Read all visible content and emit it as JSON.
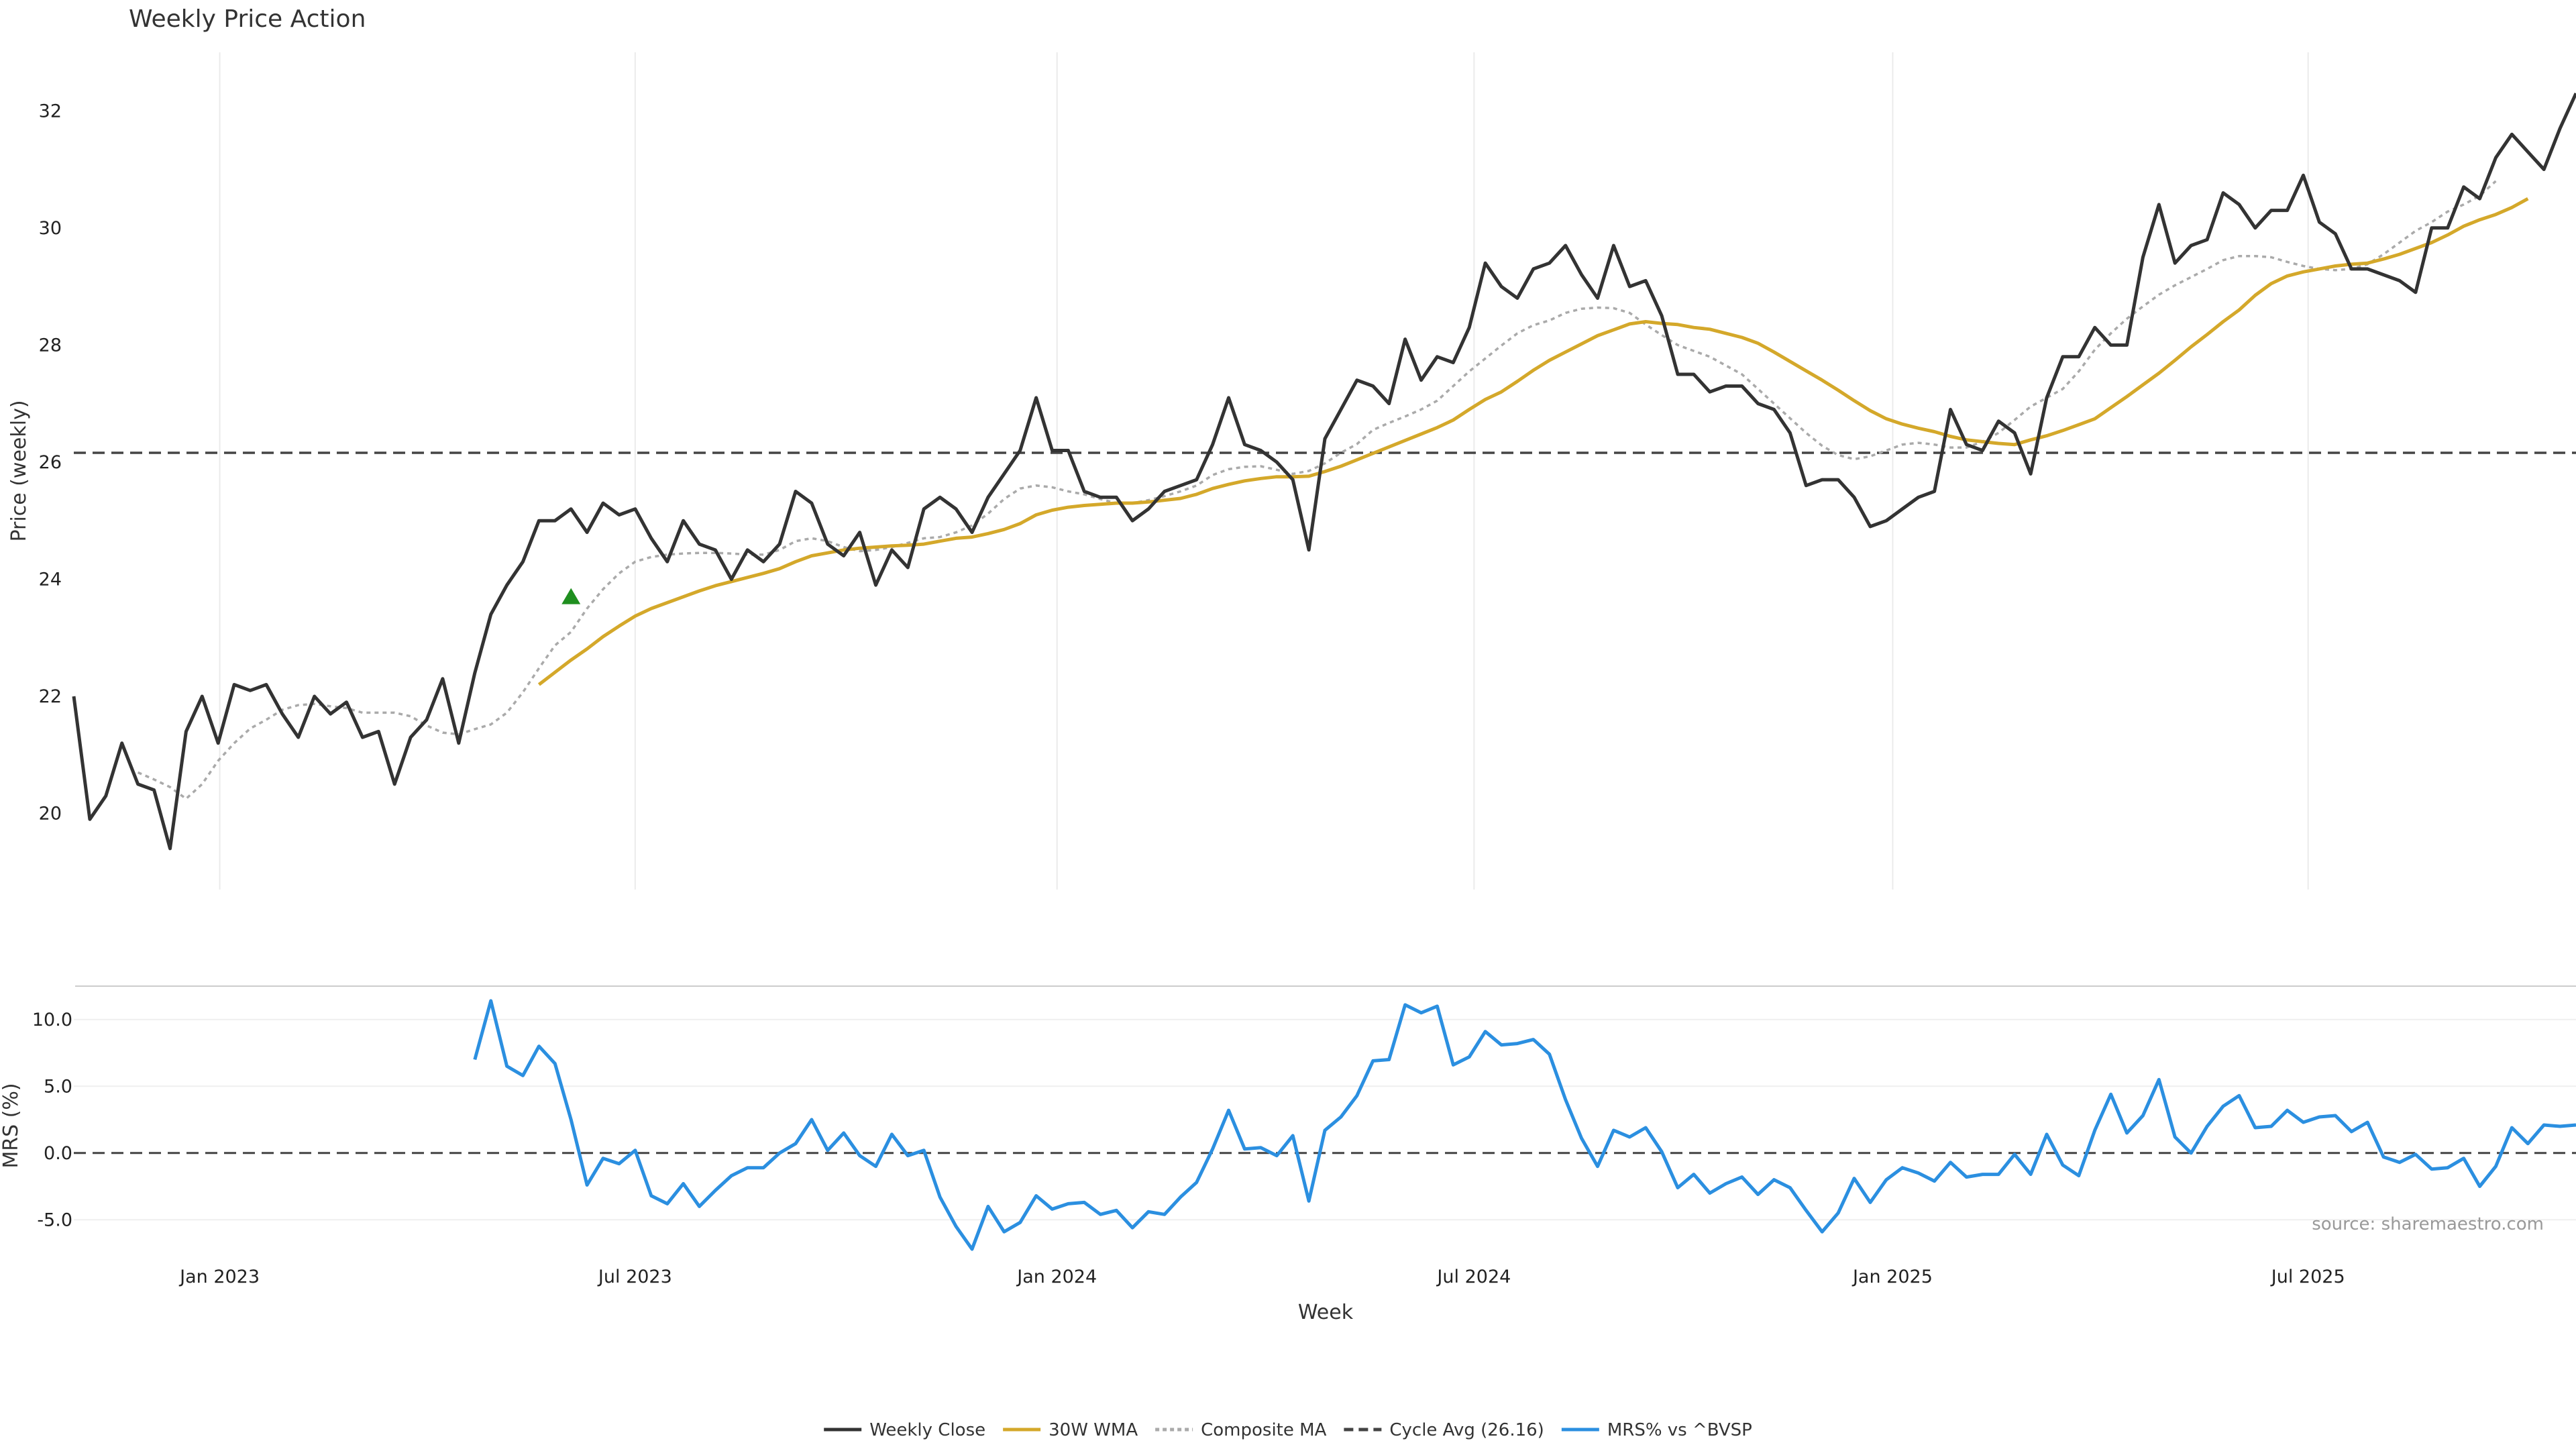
{
  "chart_data": [
    {
      "type": "line",
      "title": "Weekly Price Action",
      "ylabel": "Price (weekly)",
      "ylim": [
        18.7,
        33.0
      ],
      "yticks": [
        20,
        22,
        24,
        26,
        28,
        30,
        32
      ],
      "grid": "vertical",
      "x_start": "2022-11-07",
      "x_step_weeks": 1,
      "series": [
        {
          "name": "Weekly Close",
          "color": "#333333",
          "style": "solid",
          "values": [
            22.0,
            19.9,
            20.3,
            21.2,
            20.5,
            20.4,
            19.4,
            21.4,
            22.0,
            21.2,
            22.2,
            22.1,
            22.2,
            21.7,
            21.3,
            22.0,
            21.7,
            21.9,
            21.3,
            21.4,
            20.5,
            21.3,
            21.6,
            22.3,
            21.2,
            22.4,
            23.4,
            23.9,
            24.3,
            25.0,
            25.0,
            25.2,
            24.8,
            25.3,
            25.1,
            25.2,
            24.7,
            24.3,
            25.0,
            24.6,
            24.5,
            24.0,
            24.5,
            24.3,
            24.6,
            25.5,
            25.3,
            24.6,
            24.4,
            24.8,
            23.9,
            24.5,
            24.2,
            25.2,
            25.4,
            25.2,
            24.8,
            25.4,
            25.8,
            26.2,
            27.1,
            26.2,
            26.2,
            25.5,
            25.4,
            25.4,
            25.0,
            25.2,
            25.5,
            25.6,
            25.7,
            26.3,
            27.1,
            26.3,
            26.2,
            26.0,
            25.7,
            24.5,
            26.4,
            26.9,
            27.4,
            27.3,
            27.0,
            28.1,
            27.4,
            27.8,
            27.7,
            28.3,
            29.4,
            29.0,
            28.8,
            29.3,
            29.4,
            29.7,
            29.2,
            28.8,
            29.7,
            29.0,
            29.1,
            28.5,
            27.5,
            27.5,
            27.2,
            27.3,
            27.3,
            27.0,
            26.9,
            26.5,
            25.6,
            25.7,
            25.7,
            25.4,
            24.9,
            25.0,
            25.2,
            25.4,
            25.5,
            26.9,
            26.3,
            26.2,
            26.7,
            26.5,
            25.8,
            27.1,
            27.8,
            27.8,
            28.3,
            28.0,
            28.0,
            29.5,
            30.4,
            29.4,
            29.7,
            29.8,
            30.6,
            30.4,
            30.0,
            30.3,
            30.3,
            30.9,
            30.1,
            29.9,
            29.3,
            29.3,
            29.2,
            29.1,
            28.9,
            30.0,
            30.0,
            30.7,
            30.5,
            31.2,
            31.6,
            31.3,
            31.0,
            31.7,
            32.3
          ]
        },
        {
          "name": "30W WMA",
          "color": "#d4a82a",
          "style": "solid",
          "start_week": 29,
          "values": [
            22.2,
            22.41,
            22.62,
            22.81,
            23.02,
            23.2,
            23.37,
            23.5,
            23.6,
            23.7,
            23.8,
            23.89,
            23.96,
            24.03,
            24.1,
            24.18,
            24.3,
            24.4,
            24.45,
            24.5,
            24.53,
            24.55,
            24.57,
            24.58,
            24.6,
            24.65,
            24.7,
            24.72,
            24.78,
            24.85,
            24.95,
            25.1,
            25.18,
            25.23,
            25.26,
            25.28,
            25.3,
            25.3,
            25.32,
            25.35,
            25.38,
            25.45,
            25.55,
            25.62,
            25.68,
            25.72,
            25.75,
            25.75,
            25.76,
            25.84,
            25.93,
            26.04,
            26.15,
            26.26,
            26.37,
            26.48,
            26.59,
            26.72,
            26.9,
            27.07,
            27.2,
            27.38,
            27.57,
            27.74,
            27.88,
            28.02,
            28.16,
            28.26,
            28.36,
            28.4,
            28.37,
            28.35,
            28.3,
            28.27,
            28.2,
            28.13,
            28.03,
            27.88,
            27.72,
            27.56,
            27.4,
            27.23,
            27.05,
            26.88,
            26.74,
            26.65,
            26.58,
            26.52,
            26.44,
            26.38,
            26.35,
            26.32,
            26.3,
            26.38,
            26.45,
            26.54,
            26.64,
            26.74,
            26.93,
            27.12,
            27.32,
            27.52,
            27.74,
            27.97,
            28.18,
            28.4,
            28.6,
            28.85,
            29.05,
            29.18,
            29.25,
            29.3,
            29.35,
            29.38,
            29.4,
            29.47,
            29.55,
            29.65,
            29.75,
            29.88,
            30.03,
            30.14,
            30.23,
            30.35,
            30.5
          ]
        },
        {
          "name": "Composite MA",
          "color": "#aaaaaa",
          "style": "dotted",
          "start_week": 4,
          "values": [
            20.7,
            20.58,
            20.45,
            20.25,
            20.5,
            20.9,
            21.2,
            21.45,
            21.6,
            21.77,
            21.85,
            21.87,
            21.83,
            21.8,
            21.72,
            21.72,
            21.72,
            21.66,
            21.5,
            21.38,
            21.35,
            21.44,
            21.52,
            21.72,
            22.07,
            22.48,
            22.87,
            23.1,
            23.5,
            23.83,
            24.1,
            24.3,
            24.38,
            24.42,
            24.44,
            24.45,
            24.45,
            24.44,
            24.42,
            24.42,
            24.5,
            24.65,
            24.7,
            24.65,
            24.55,
            24.48,
            24.5,
            24.55,
            24.62,
            24.7,
            24.72,
            24.8,
            24.92,
            25.12,
            25.37,
            25.55,
            25.6,
            25.57,
            25.5,
            25.45,
            25.37,
            25.3,
            25.3,
            25.35,
            25.42,
            25.5,
            25.6,
            25.78,
            25.88,
            25.92,
            25.93,
            25.87,
            25.8,
            25.85,
            25.98,
            26.16,
            26.31,
            26.55,
            26.67,
            26.78,
            26.9,
            27.05,
            27.3,
            27.55,
            27.77,
            27.99,
            28.2,
            28.34,
            28.42,
            28.55,
            28.62,
            28.64,
            28.63,
            28.55,
            28.35,
            28.17,
            28.0,
            27.9,
            27.8,
            27.65,
            27.5,
            27.25,
            27.0,
            26.75,
            26.5,
            26.28,
            26.12,
            26.05,
            26.1,
            26.2,
            26.3,
            26.33,
            26.3,
            26.25,
            26.25,
            26.35,
            26.5,
            26.72,
            26.95,
            27.1,
            27.25,
            27.55,
            27.92,
            28.2,
            28.45,
            28.66,
            28.86,
            29.02,
            29.16,
            29.3,
            29.45,
            29.52,
            29.52,
            29.5,
            29.42,
            29.35,
            29.3,
            29.28,
            29.3,
            29.38,
            29.55,
            29.75,
            29.95,
            30.1,
            30.28,
            30.4,
            30.55,
            30.8
          ]
        }
      ],
      "reference_lines": [
        {
          "name": "Cycle Avg (26.16)",
          "y": 26.16,
          "color": "#444444",
          "style": "dashed"
        }
      ],
      "markers": [
        {
          "shape": "triangle-up",
          "x_week": 31,
          "y": 23.7,
          "color": "#1f8f1f"
        }
      ]
    },
    {
      "type": "line",
      "xlabel": "Week",
      "ylabel": "MRS (%)",
      "ylim": [
        -7.8,
        12.5
      ],
      "yticks": [
        10.0,
        5.0,
        0.0,
        -5.0
      ],
      "ytick_labels": [
        "10.0",
        "5.0",
        "0.0",
        "-5.0"
      ],
      "xticks": [
        {
          "label": "Jan 2023",
          "week": 9.1
        },
        {
          "label": "Jul 2023",
          "week": 35
        },
        {
          "label": "Jan 2024",
          "week": 61.3
        },
        {
          "label": "Jul 2024",
          "week": 87.3
        },
        {
          "label": "Jan 2025",
          "week": 113.4
        },
        {
          "label": "Jul 2025",
          "week": 139.3
        }
      ],
      "series": [
        {
          "name": "MRS% vs ^BVSP",
          "color": "#2b8fe0",
          "style": "solid",
          "start_week": 25,
          "values": [
            7.0,
            11.4,
            6.5,
            5.8,
            8.0,
            6.7,
            2.5,
            -2.4,
            -0.4,
            -0.8,
            0.2,
            -3.2,
            -3.8,
            -2.3,
            -4.0,
            -2.8,
            -1.7,
            -1.1,
            -1.1,
            0.0,
            0.7,
            2.5,
            0.2,
            1.5,
            -0.2,
            -1.0,
            1.4,
            -0.2,
            0.2,
            -3.3,
            -5.5,
            -7.2,
            -4.0,
            -5.9,
            -5.2,
            -3.2,
            -4.2,
            -3.8,
            -3.7,
            -4.6,
            -4.3,
            -5.6,
            -4.4,
            -4.6,
            -3.3,
            -2.2,
            0.3,
            3.2,
            0.3,
            0.4,
            -0.2,
            1.3,
            -3.6,
            1.7,
            2.7,
            4.3,
            6.9,
            7.0,
            11.1,
            10.5,
            11.0,
            6.6,
            7.2,
            9.1,
            8.1,
            8.2,
            8.5,
            7.4,
            4.0,
            1.1,
            -1.0,
            1.7,
            1.2,
            1.9,
            0.1,
            -2.6,
            -1.6,
            -3.0,
            -2.3,
            -1.8,
            -3.1,
            -2.0,
            -2.6,
            -4.3,
            -5.9,
            -4.5,
            -1.9,
            -3.7,
            -2.0,
            -1.1,
            -1.5,
            -2.1,
            -0.7,
            -1.8,
            -1.6,
            -1.6,
            -0.1,
            -1.6,
            1.4,
            -0.9,
            -1.7,
            1.7,
            4.4,
            1.5,
            2.8,
            5.5,
            1.2,
            0.0,
            2.0,
            3.5,
            4.3,
            1.9,
            2.0,
            3.2,
            2.3,
            2.7,
            2.8,
            1.6,
            2.3,
            -0.3,
            -0.7,
            -0.1,
            -1.2,
            -1.1,
            -0.4,
            -2.5,
            -1.0,
            1.9,
            0.7,
            2.1,
            2.0,
            2.1
          ]
        }
      ],
      "reference_lines": [
        {
          "y": 0,
          "color": "#444444",
          "style": "dashed"
        }
      ],
      "source_note": "source: sharemaestro.com"
    }
  ],
  "legend": {
    "placement": "bottom-center",
    "entries": [
      {
        "label": "Weekly Close",
        "color": "#333333",
        "style": "solid"
      },
      {
        "label": "30W WMA",
        "color": "#d4a82a",
        "style": "solid"
      },
      {
        "label": "Composite MA",
        "color": "#aaaaaa",
        "style": "dotted"
      },
      {
        "label": "Cycle Avg (26.16)",
        "color": "#444444",
        "style": "dashed"
      },
      {
        "label": "MRS% vs ^BVSP",
        "color": "#2b8fe0",
        "style": "solid"
      }
    ]
  }
}
